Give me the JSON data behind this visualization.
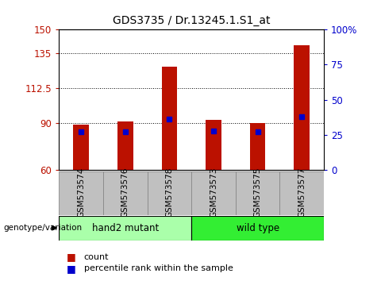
{
  "title": "GDS3735 / Dr.13245.1.S1_at",
  "samples": [
    "GSM573574",
    "GSM573576",
    "GSM573578",
    "GSM573573",
    "GSM573575",
    "GSM573577"
  ],
  "counts": [
    89,
    91,
    126,
    92,
    90,
    140
  ],
  "percentiles": [
    27,
    27,
    36,
    28,
    27,
    38
  ],
  "ylim_left": [
    60,
    150
  ],
  "ylim_right": [
    0,
    100
  ],
  "yticks_left": [
    60,
    90,
    112.5,
    135,
    150
  ],
  "ytick_labels_left": [
    "60",
    "90",
    "112.5",
    "135",
    "150"
  ],
  "yticks_right": [
    0,
    25,
    50,
    75,
    100
  ],
  "ytick_labels_right": [
    "0",
    "25",
    "50",
    "75",
    "100%"
  ],
  "bar_color": "#bb1100",
  "marker_color": "#0000cc",
  "groups": [
    {
      "label": "hand2 mutant",
      "indices": [
        0,
        1,
        2
      ],
      "color": "#aaffaa"
    },
    {
      "label": "wild type",
      "indices": [
        3,
        4,
        5
      ],
      "color": "#33ee33"
    }
  ],
  "group_label": "genotype/variation",
  "legend_count": "count",
  "legend_percentile": "percentile rank within the sample",
  "plot_bg": "#ffffff",
  "grid_color": "#000000",
  "tick_label_area_color": "#c0c0c0",
  "title_fontsize": 10,
  "tick_fontsize": 8.5,
  "bar_width": 0.35
}
